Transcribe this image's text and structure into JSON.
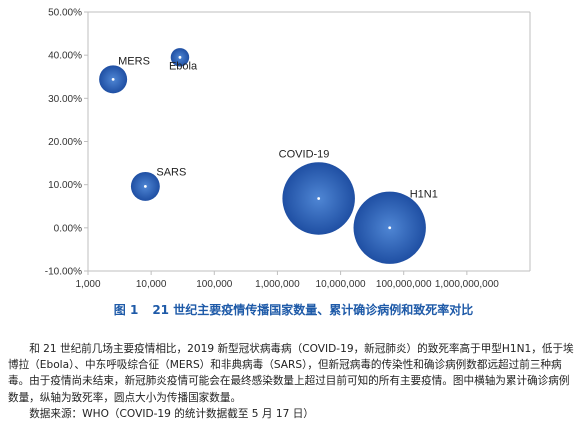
{
  "caption": {
    "number": "图 1",
    "title": "21 世纪主要疫情传播国家数量、累计确诊病例和致死率对比"
  },
  "body": {
    "paragraph": "和 21 世纪前几场主要疫情相比，2019 新型冠状病毒病（COVID-19，新冠肺炎）的致死率高于甲型H1N1，低于埃博拉（Ebola）、中东呼吸综合征（MERS）和非典病毒（SARS），但新冠病毒的传染性和确诊病例数都远超过前三种病毒。由于疫情尚未结束，新冠肺炎疫情可能会在最终感染数量上超过目前可知的所有主要疫情。图中横轴为累计确诊病例数量，纵轴为致死率，圆点大小为传播国家数量。",
    "source": "数据来源：WHO（COVID-19 的统计数据截至 5 月 17 日）"
  },
  "chart_data": {
    "type": "scatter",
    "x_scale": "log",
    "xlim": [
      1000,
      10000000000
    ],
    "ylim": [
      -10,
      50
    ],
    "x_ticks": [
      "1,000",
      "10,000",
      "100,000",
      "1,000,000",
      "10,000,000",
      "100,000,000",
      "1,000,000,000"
    ],
    "x_tick_values": [
      1000,
      10000,
      100000,
      1000000,
      10000000,
      100000000,
      1000000000
    ],
    "y_ticks": [
      "-10.00%",
      "0.00%",
      "10.00%",
      "20.00%",
      "30.00%",
      "40.00%",
      "50.00%"
    ],
    "y_tick_values": [
      -10,
      0,
      10,
      20,
      30,
      40,
      50
    ],
    "grid": false,
    "bubble_color": "#2f62b8",
    "points": [
      {
        "label": "MERS",
        "x": 2500,
        "y": 34.4,
        "size": 27
      },
      {
        "label": "Ebola",
        "x": 28600,
        "y": 39.5,
        "size": 10
      },
      {
        "label": "SARS",
        "x": 8100,
        "y": 9.6,
        "size": 29
      },
      {
        "label": "COVID-19",
        "x": 4500000,
        "y": 6.8,
        "size": 215
      },
      {
        "label": "H1N1",
        "x": 60000000,
        "y": 0.02,
        "size": 214
      }
    ]
  }
}
